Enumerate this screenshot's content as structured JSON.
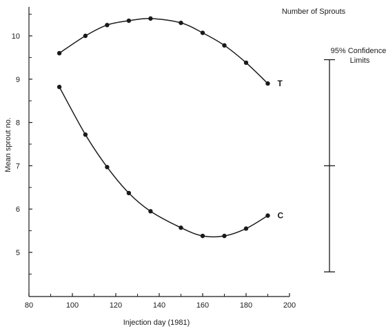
{
  "chart_data": {
    "type": "line",
    "title": "Number of Sprouts",
    "xlabel": "Injection day (1981)",
    "ylabel": "Mean sprout no.",
    "xlim": [
      80,
      200
    ],
    "ylim": [
      4,
      10.5
    ],
    "xticks": [
      "80",
      "100",
      "120",
      "140",
      "160",
      "180",
      "200"
    ],
    "yticks": [
      "5",
      "6",
      "7",
      "8",
      "9",
      "10"
    ],
    "x": [
      94,
      106,
      116,
      126,
      136,
      150,
      160,
      170,
      180,
      190
    ],
    "series": [
      {
        "name": "T",
        "values": [
          9.6,
          10.0,
          10.25,
          10.35,
          10.4,
          10.3,
          10.07,
          9.78,
          9.38,
          8.9
        ]
      },
      {
        "name": "C",
        "values": [
          8.82,
          7.72,
          6.97,
          6.37,
          5.95,
          5.57,
          5.38,
          5.38,
          5.55,
          5.85
        ]
      }
    ],
    "confidence_limits": {
      "label_line1": "95% Confidence",
      "label_line2": "Limits",
      "upper": 9.45,
      "center": 7.0,
      "lower": 4.55
    },
    "grid": false,
    "legend": "none"
  }
}
